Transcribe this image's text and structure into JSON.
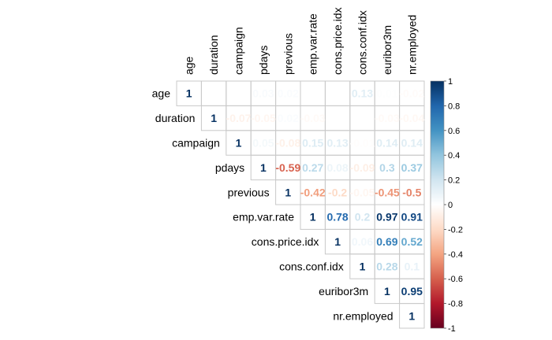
{
  "chart_data": {
    "type": "heatmap",
    "variables": [
      "age",
      "duration",
      "campaign",
      "pdays",
      "previous",
      "emp.var.rate",
      "cons.price.idx",
      "cons.conf.idx",
      "euribor3m",
      "nr.employed"
    ],
    "cells": [
      {
        "row": 0,
        "col": 0,
        "value": 1,
        "label": "1"
      },
      {
        "row": 0,
        "col": 3,
        "value": 0.03,
        "label": "0.03"
      },
      {
        "row": 0,
        "col": 4,
        "value": 0.02,
        "label": "0.02"
      },
      {
        "row": 0,
        "col": 7,
        "value": 0.13,
        "label": "0.13"
      },
      {
        "row": 0,
        "col": 8,
        "value": 0.01,
        "label": "0.01"
      },
      {
        "row": 0,
        "col": 9,
        "value": -0.02,
        "label": "-0.02"
      },
      {
        "row": 1,
        "col": 1,
        "value": 1,
        "label": "1"
      },
      {
        "row": 1,
        "col": 2,
        "value": -0.07,
        "label": "-0.07"
      },
      {
        "row": 1,
        "col": 3,
        "value": -0.05,
        "label": "-0.05"
      },
      {
        "row": 1,
        "col": 4,
        "value": 0.02,
        "label": "0.02"
      },
      {
        "row": 1,
        "col": 5,
        "value": -0.03,
        "label": "-0.03"
      },
      {
        "row": 1,
        "col": 8,
        "value": -0.03,
        "label": "-0.03"
      },
      {
        "row": 1,
        "col": 9,
        "value": -0.04,
        "label": "-0.04"
      },
      {
        "row": 2,
        "col": 2,
        "value": 1,
        "label": "1"
      },
      {
        "row": 2,
        "col": 3,
        "value": 0.05,
        "label": "0.05"
      },
      {
        "row": 2,
        "col": 4,
        "value": -0.08,
        "label": "-0.08"
      },
      {
        "row": 2,
        "col": 5,
        "value": 0.15,
        "label": "0.15"
      },
      {
        "row": 2,
        "col": 6,
        "value": 0.13,
        "label": "0.13"
      },
      {
        "row": 2,
        "col": 7,
        "value": -0.01,
        "label": "-0.01"
      },
      {
        "row": 2,
        "col": 8,
        "value": 0.14,
        "label": "0.14"
      },
      {
        "row": 2,
        "col": 9,
        "value": 0.14,
        "label": "0.14"
      },
      {
        "row": 3,
        "col": 3,
        "value": 1,
        "label": "1"
      },
      {
        "row": 3,
        "col": 4,
        "value": -0.59,
        "label": "-0.59"
      },
      {
        "row": 3,
        "col": 5,
        "value": 0.27,
        "label": "0.27"
      },
      {
        "row": 3,
        "col": 6,
        "value": 0.08,
        "label": "0.08"
      },
      {
        "row": 3,
        "col": 7,
        "value": -0.09,
        "label": "-0.09"
      },
      {
        "row": 3,
        "col": 8,
        "value": 0.3,
        "label": "0.3"
      },
      {
        "row": 3,
        "col": 9,
        "value": 0.37,
        "label": "0.37"
      },
      {
        "row": 4,
        "col": 4,
        "value": 1,
        "label": "1"
      },
      {
        "row": 4,
        "col": 5,
        "value": -0.42,
        "label": "-0.42"
      },
      {
        "row": 4,
        "col": 6,
        "value": -0.2,
        "label": "-0.2"
      },
      {
        "row": 4,
        "col": 7,
        "value": -0.05,
        "label": "-0.05"
      },
      {
        "row": 4,
        "col": 8,
        "value": -0.45,
        "label": "-0.45"
      },
      {
        "row": 4,
        "col": 9,
        "value": -0.5,
        "label": "-0.5"
      },
      {
        "row": 5,
        "col": 5,
        "value": 1,
        "label": "1"
      },
      {
        "row": 5,
        "col": 6,
        "value": 0.78,
        "label": "0.78"
      },
      {
        "row": 5,
        "col": 7,
        "value": 0.2,
        "label": "0.2"
      },
      {
        "row": 5,
        "col": 8,
        "value": 0.97,
        "label": "0.97"
      },
      {
        "row": 5,
        "col": 9,
        "value": 0.91,
        "label": "0.91"
      },
      {
        "row": 6,
        "col": 6,
        "value": 1,
        "label": "1"
      },
      {
        "row": 6,
        "col": 7,
        "value": 0.06,
        "label": "0.06"
      },
      {
        "row": 6,
        "col": 8,
        "value": 0.69,
        "label": "0.69"
      },
      {
        "row": 6,
        "col": 9,
        "value": 0.52,
        "label": "0.52"
      },
      {
        "row": 7,
        "col": 7,
        "value": 1,
        "label": "1"
      },
      {
        "row": 7,
        "col": 8,
        "value": 0.28,
        "label": "0.28"
      },
      {
        "row": 7,
        "col": 9,
        "value": 0.1,
        "label": "0.1"
      },
      {
        "row": 8,
        "col": 8,
        "value": 1,
        "label": "1"
      },
      {
        "row": 8,
        "col": 9,
        "value": 0.95,
        "label": "0.95"
      },
      {
        "row": 9,
        "col": 9,
        "value": 1,
        "label": "1"
      }
    ],
    "colorbar": {
      "ticks": [
        "-1",
        "-0.8",
        "-0.6",
        "-0.4",
        "-0.2",
        "0",
        "0.2",
        "0.4",
        "0.6",
        "0.8",
        "1"
      ],
      "range": [
        -1,
        1
      ],
      "colors": [
        "#67001F",
        "#B2182B",
        "#D6604D",
        "#F4A582",
        "#FDDBC7",
        "#FFFFFF",
        "#D1E5F0",
        "#92C5DE",
        "#4393C3",
        "#2166AC",
        "#053061"
      ]
    },
    "layout": "upper-triangle",
    "grid": true
  }
}
